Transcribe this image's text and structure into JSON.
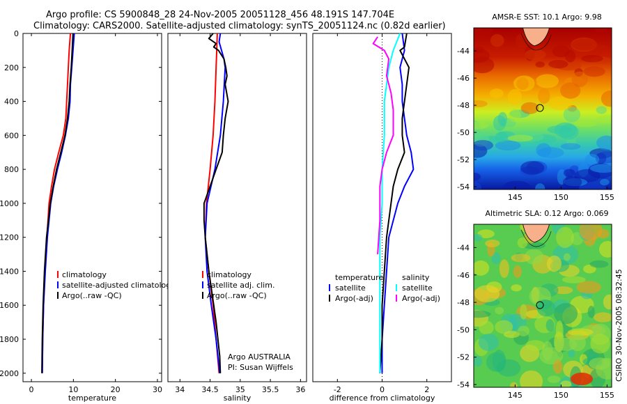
{
  "header": {
    "line1": "Argo profile: CS 5900848_28 24-Nov-2005 20051128_456 48.191S 147.704E",
    "line2": "Climatology: CARS2000. Satellite-adjusted climatology: synTS_20051124.nc (0.82d earlier)"
  },
  "side_label": "CSIRO 30-Nov-2005 08:32:45",
  "colors": {
    "red": "#ff0000",
    "blue": "#0000ff",
    "black": "#000000",
    "cyan": "#00ffff",
    "magenta": "#ff00ff",
    "land": "#f7b089"
  },
  "chart_data": [
    {
      "type": "line",
      "xlabel": "temperature",
      "ylabel": "",
      "xlim": [
        -2,
        31
      ],
      "ylim": [
        2050,
        0
      ],
      "xticks": [
        0,
        10,
        20,
        30
      ],
      "yticks": [
        0,
        200,
        400,
        600,
        800,
        1000,
        1200,
        1400,
        1600,
        1800,
        2000
      ],
      "legend": [
        "climatology",
        "satellite-adjusted climatolog",
        "Argo(..raw -QC)"
      ],
      "series": [
        {
          "name": "climatology",
          "color": "#ff0000",
          "points": [
            [
              9.3,
              0
            ],
            [
              9.0,
              100
            ],
            [
              8.8,
              200
            ],
            [
              8.6,
              300
            ],
            [
              8.4,
              400
            ],
            [
              8.2,
              500
            ],
            [
              7.6,
              600
            ],
            [
              6.5,
              700
            ],
            [
              5.5,
              800
            ],
            [
              4.8,
              900
            ],
            [
              4.2,
              1000
            ],
            [
              3.7,
              1200
            ],
            [
              3.2,
              1400
            ],
            [
              2.9,
              1600
            ],
            [
              2.7,
              1800
            ],
            [
              2.6,
              2000
            ]
          ]
        },
        {
          "name": "satellite-adjusted climatolog",
          "color": "#0000ff",
          "points": [
            [
              10.2,
              0
            ],
            [
              9.9,
              100
            ],
            [
              9.6,
              200
            ],
            [
              9.3,
              300
            ],
            [
              9.2,
              400
            ],
            [
              8.8,
              500
            ],
            [
              8.1,
              600
            ],
            [
              7.2,
              700
            ],
            [
              6.2,
              800
            ],
            [
              5.3,
              900
            ],
            [
              4.6,
              1000
            ],
            [
              3.8,
              1200
            ],
            [
              3.3,
              1400
            ],
            [
              2.9,
              1600
            ],
            [
              2.7,
              1800
            ],
            [
              2.6,
              2000
            ]
          ]
        },
        {
          "name": "Argo(..raw -QC)",
          "color": "#000000",
          "points": [
            [
              9.9,
              0
            ],
            [
              9.7,
              100
            ],
            [
              9.5,
              200
            ],
            [
              9.2,
              300
            ],
            [
              9.0,
              400
            ],
            [
              8.6,
              500
            ],
            [
              8.0,
              600
            ],
            [
              7.0,
              700
            ],
            [
              6.0,
              800
            ],
            [
              5.2,
              900
            ],
            [
              4.5,
              1000
            ],
            [
              3.6,
              1200
            ],
            [
              3.1,
              1400
            ],
            [
              2.8,
              1600
            ],
            [
              2.6,
              1800
            ],
            [
              2.5,
              2000
            ]
          ]
        }
      ]
    },
    {
      "type": "line",
      "xlabel": "salinity",
      "ylabel": "",
      "xlim": [
        33.8,
        36.1
      ],
      "ylim": [
        2050,
        0
      ],
      "xticks": [
        34,
        34.5,
        35,
        35.5,
        36
      ],
      "yticks": [],
      "legend": [
        "climatology",
        "satellite adj. clim.",
        "Argo(..raw -QC)"
      ],
      "series": [
        {
          "name": "climatology",
          "color": "#ff0000",
          "points": [
            [
              34.62,
              0
            ],
            [
              34.61,
              100
            ],
            [
              34.6,
              200
            ],
            [
              34.58,
              400
            ],
            [
              34.55,
              600
            ],
            [
              34.5,
              800
            ],
            [
              34.44,
              1000
            ],
            [
              34.42,
              1200
            ],
            [
              34.48,
              1400
            ],
            [
              34.55,
              1600
            ],
            [
              34.6,
              1800
            ],
            [
              34.65,
              2000
            ]
          ]
        },
        {
          "name": "satellite adj. clim.",
          "color": "#0000ff",
          "points": [
            [
              34.67,
              0
            ],
            [
              34.65,
              50
            ],
            [
              34.69,
              100
            ],
            [
              34.73,
              150
            ],
            [
              34.75,
              200
            ],
            [
              34.72,
              400
            ],
            [
              34.67,
              600
            ],
            [
              34.58,
              800
            ],
            [
              34.45,
              1000
            ],
            [
              34.42,
              1200
            ],
            [
              34.45,
              1400
            ],
            [
              34.52,
              1600
            ],
            [
              34.6,
              1800
            ],
            [
              34.66,
              2000
            ]
          ]
        },
        {
          "name": "Argo(..raw -QC)",
          "color": "#000000",
          "points": [
            [
              34.55,
              0
            ],
            [
              34.48,
              30
            ],
            [
              34.6,
              60
            ],
            [
              34.56,
              80
            ],
            [
              34.64,
              100
            ],
            [
              34.73,
              150
            ],
            [
              34.76,
              200
            ],
            [
              34.78,
              250
            ],
            [
              34.75,
              300
            ],
            [
              34.8,
              400
            ],
            [
              34.75,
              500
            ],
            [
              34.72,
              600
            ],
            [
              34.7,
              700
            ],
            [
              34.6,
              800
            ],
            [
              34.5,
              900
            ],
            [
              34.4,
              1000
            ],
            [
              34.4,
              1100
            ],
            [
              34.42,
              1200
            ],
            [
              34.45,
              1300
            ],
            [
              34.48,
              1400
            ],
            [
              34.52,
              1500
            ],
            [
              34.56,
              1600
            ],
            [
              34.6,
              1700
            ],
            [
              34.63,
              1800
            ],
            [
              34.66,
              1900
            ],
            [
              34.67,
              2000
            ]
          ]
        }
      ],
      "annotations": [
        "Argo AUSTRALIA",
        "PI: Susan Wijffels"
      ]
    },
    {
      "type": "line",
      "xlabel": "difference from climatology",
      "ylabel": "",
      "xlim": [
        -3.1,
        3.1
      ],
      "ylim": [
        2050,
        0
      ],
      "xticks": [
        -2,
        0,
        2
      ],
      "yticks": [],
      "legend_groups": [
        {
          "title": "temperature",
          "items": [
            "satellite",
            "Argo(-adj)"
          ]
        },
        {
          "title": "salinity",
          "items": [
            "satellite",
            "Argo(-adj)"
          ]
        }
      ],
      "series": [
        {
          "name": "temperature satellite",
          "color": "#0000ff",
          "points": [
            [
              0.9,
              0
            ],
            [
              1.0,
              100
            ],
            [
              0.8,
              200
            ],
            [
              0.9,
              300
            ],
            [
              0.9,
              400
            ],
            [
              1.0,
              500
            ],
            [
              1.1,
              600
            ],
            [
              1.3,
              700
            ],
            [
              1.4,
              800
            ],
            [
              1.0,
              900
            ],
            [
              0.7,
              1000
            ],
            [
              0.3,
              1200
            ],
            [
              0.2,
              1400
            ],
            [
              0.1,
              1600
            ],
            [
              0.0,
              1800
            ],
            [
              0.0,
              2000
            ]
          ]
        },
        {
          "name": "temperature Argo(-adj)",
          "color": "#000000",
          "points": [
            [
              1.1,
              0
            ],
            [
              1.0,
              80
            ],
            [
              0.8,
              100
            ],
            [
              1.2,
              200
            ],
            [
              1.1,
              300
            ],
            [
              1.0,
              400
            ],
            [
              0.9,
              500
            ],
            [
              0.9,
              600
            ],
            [
              1.0,
              700
            ],
            [
              0.7,
              800
            ],
            [
              0.5,
              900
            ],
            [
              0.4,
              1000
            ],
            [
              0.2,
              1200
            ],
            [
              0.1,
              1400
            ],
            [
              0.0,
              1600
            ],
            [
              0.0,
              1800
            ],
            [
              -0.1,
              2000
            ]
          ]
        },
        {
          "name": "salinity satellite",
          "color": "#00ffff",
          "points": [
            [
              0.8,
              0
            ],
            [
              0.5,
              100
            ],
            [
              0.3,
              200
            ],
            [
              0.2,
              300
            ],
            [
              0.1,
              400
            ],
            [
              0.1,
              600
            ],
            [
              0.0,
              800
            ],
            [
              0.0,
              1000
            ],
            [
              -0.1,
              1200
            ],
            [
              -0.1,
              1600
            ],
            [
              -0.1,
              2000
            ]
          ]
        },
        {
          "name": "salinity Argo(-adj)",
          "color": "#ff00ff",
          "points": [
            [
              -0.2,
              20
            ],
            [
              -0.4,
              60
            ],
            [
              0.1,
              100
            ],
            [
              0.3,
              150
            ],
            [
              0.2,
              250
            ],
            [
              0.4,
              350
            ],
            [
              0.5,
              450
            ],
            [
              0.5,
              600
            ],
            [
              0.2,
              700
            ],
            [
              0.0,
              800
            ],
            [
              -0.1,
              900
            ],
            [
              -0.1,
              1100
            ],
            [
              -0.2,
              1300
            ]
          ]
        }
      ]
    },
    {
      "type": "heatmap",
      "title": "AMSR-E SST: 10.1 Argo: 9.98",
      "xlim": [
        140.5,
        155.5
      ],
      "ylim": [
        -54.2,
        -42.3
      ],
      "xticks": [
        145,
        150,
        155
      ],
      "yticks": [
        -44,
        -46,
        -48,
        -50,
        -52,
        -54
      ],
      "marker": {
        "lon": 147.7,
        "lat": -48.2
      }
    },
    {
      "type": "heatmap",
      "title": "Altimetric SLA: 0.12 Argo: 0.069",
      "xlim": [
        140.5,
        155.5
      ],
      "ylim": [
        -54.2,
        -42.3
      ],
      "xticks": [
        145,
        150,
        155
      ],
      "yticks": [
        -44,
        -46,
        -48,
        -50,
        -52,
        -54
      ],
      "marker": {
        "lon": 147.7,
        "lat": -48.2
      }
    }
  ]
}
